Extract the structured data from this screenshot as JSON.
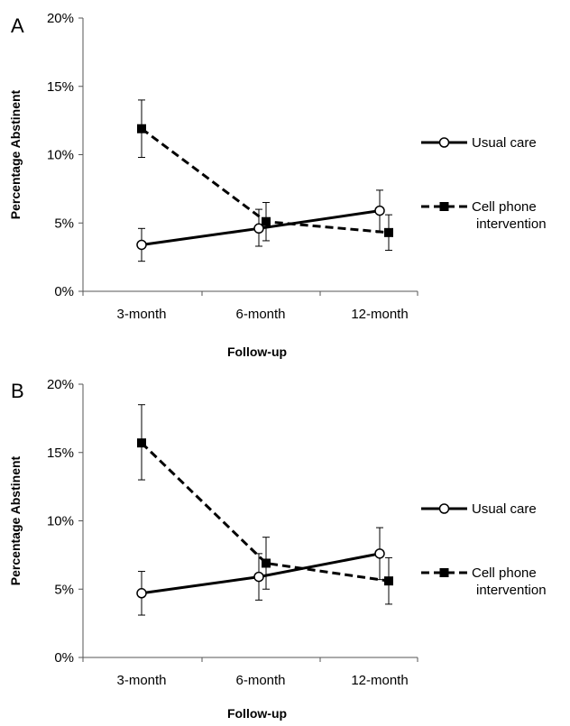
{
  "chart_data": [
    {
      "type": "line",
      "panel_label": "A",
      "categories": [
        "3-month",
        "6-month",
        "12-month"
      ],
      "xlabel": "Follow-up",
      "ylabel": "Percentage Abstinent",
      "ylim": [
        0,
        20
      ],
      "yticks": [
        "0%",
        "5%",
        "10%",
        "15%",
        "20%"
      ],
      "grid": false,
      "legend_placement": "right",
      "series": [
        {
          "name": "Usual care",
          "style": "solid-open-circle",
          "color": "#000000",
          "values": [
            3.4,
            4.6,
            5.9
          ],
          "err_low": [
            2.2,
            3.3,
            4.3
          ],
          "err_high": [
            4.6,
            6.0,
            7.4
          ]
        },
        {
          "name": "Cell phone intervention",
          "legend_lines": [
            "Cell phone",
            "intervention"
          ],
          "style": "dashed-filled-square",
          "color": "#000000",
          "values": [
            11.9,
            5.1,
            4.3
          ],
          "err_low": [
            9.8,
            3.7,
            3.0
          ],
          "err_high": [
            14.0,
            6.5,
            5.6
          ]
        }
      ]
    },
    {
      "type": "line",
      "panel_label": "B",
      "categories": [
        "3-month",
        "6-month",
        "12-month"
      ],
      "xlabel": "Follow-up",
      "ylabel": "Percentage Abstinent",
      "ylim": [
        0,
        20
      ],
      "yticks": [
        "0%",
        "5%",
        "10%",
        "15%",
        "20%"
      ],
      "grid": false,
      "legend_placement": "right",
      "series": [
        {
          "name": "Usual care",
          "style": "solid-open-circle",
          "color": "#000000",
          "values": [
            4.7,
            5.9,
            7.6
          ],
          "err_low": [
            3.1,
            4.2,
            5.7
          ],
          "err_high": [
            6.3,
            7.6,
            9.5
          ]
        },
        {
          "name": "Cell phone intervention",
          "legend_lines": [
            "Cell phone",
            "intervention"
          ],
          "style": "dashed-filled-square",
          "color": "#000000",
          "values": [
            15.7,
            6.9,
            5.6
          ],
          "err_low": [
            13.0,
            5.0,
            3.9
          ],
          "err_high": [
            18.5,
            8.8,
            7.3
          ]
        }
      ]
    }
  ]
}
